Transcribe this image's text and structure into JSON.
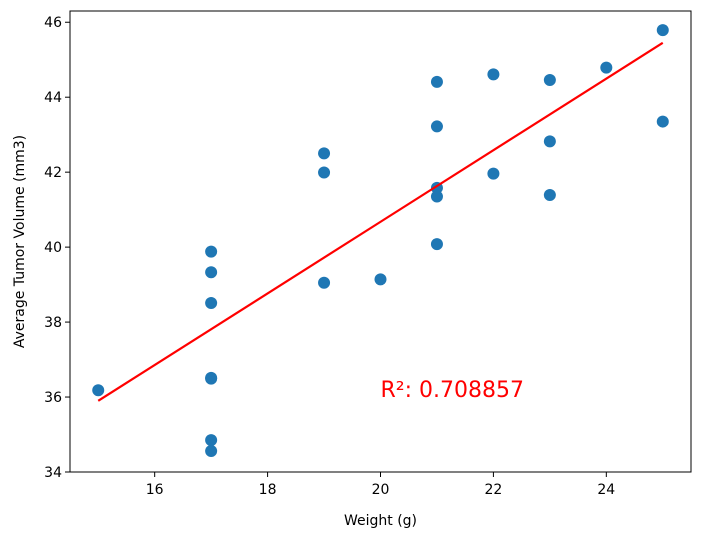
{
  "chart_data": {
    "type": "scatter",
    "title": "",
    "xlabel": "Weight (g)",
    "ylabel": "Average Tumor Volume (mm3)",
    "xlim": [
      14.5,
      25.5
    ],
    "ylim": [
      34,
      46.3
    ],
    "xticks": [
      16,
      18,
      20,
      22,
      24
    ],
    "yticks": [
      34,
      36,
      38,
      40,
      42,
      44,
      46
    ],
    "grid": false,
    "point_color": "#1f77b4",
    "points": [
      {
        "x": 15,
        "y": 36.18
      },
      {
        "x": 17,
        "y": 39.88
      },
      {
        "x": 17,
        "y": 39.33
      },
      {
        "x": 17,
        "y": 38.51
      },
      {
        "x": 17,
        "y": 36.51
      },
      {
        "x": 17,
        "y": 36.49
      },
      {
        "x": 17,
        "y": 34.85
      },
      {
        "x": 17,
        "y": 34.56
      },
      {
        "x": 19,
        "y": 42.5
      },
      {
        "x": 19,
        "y": 41.99
      },
      {
        "x": 19,
        "y": 39.05
      },
      {
        "x": 20,
        "y": 39.14
      },
      {
        "x": 21,
        "y": 44.41
      },
      {
        "x": 21,
        "y": 43.22
      },
      {
        "x": 21,
        "y": 41.58
      },
      {
        "x": 21,
        "y": 41.35
      },
      {
        "x": 21,
        "y": 40.08
      },
      {
        "x": 22,
        "y": 44.61
      },
      {
        "x": 22,
        "y": 41.96
      },
      {
        "x": 23,
        "y": 44.46
      },
      {
        "x": 23,
        "y": 42.82
      },
      {
        "x": 23,
        "y": 41.39
      },
      {
        "x": 24,
        "y": 44.79
      },
      {
        "x": 25,
        "y": 45.79
      },
      {
        "x": 25,
        "y": 43.35
      }
    ],
    "regression_line": {
      "color": "#ff0000",
      "x": [
        15,
        25
      ],
      "y": [
        35.9,
        45.45
      ]
    },
    "annotation": {
      "text": "R²: 0.708857",
      "x": 20,
      "y": 36,
      "color": "#ff0000"
    }
  }
}
